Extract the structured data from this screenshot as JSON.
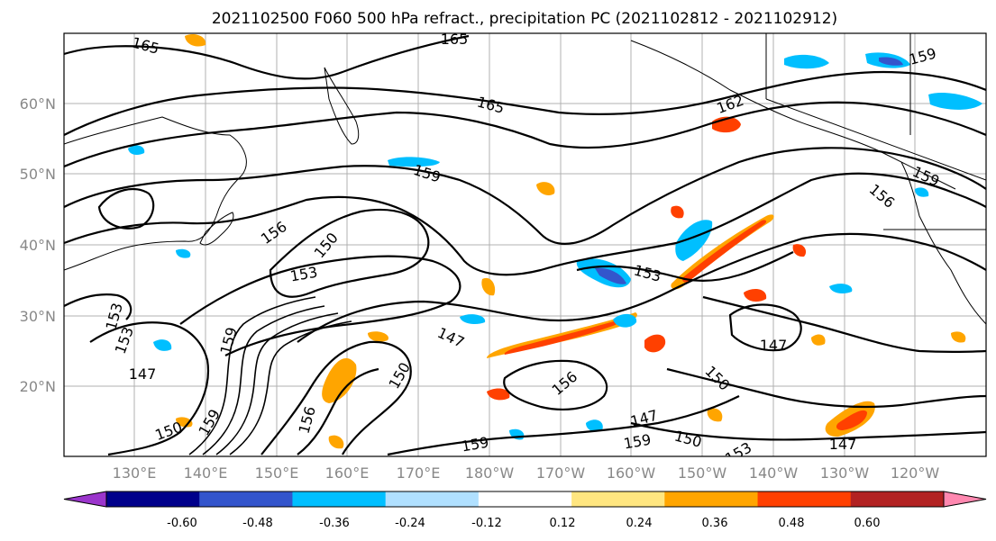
{
  "title": "2021102500 F060 500 hPa refract., precipitation PC (2021102812 - 2021102912)",
  "lat_labels": [
    "60°N",
    "50°N",
    "40°N",
    "30°N",
    "20°N"
  ],
  "lon_labels": [
    "130°E",
    "140°E",
    "150°E",
    "160°E",
    "170°E",
    "180°W",
    "170°W",
    "160°W",
    "150°W",
    "140°W",
    "130°W",
    "120°W"
  ],
  "colorbar": {
    "tick_labels": [
      "-0.60",
      "-0.48",
      "-0.36",
      "-0.24",
      "-0.12",
      "0.12",
      "0.24",
      "0.36",
      "0.48",
      "0.60"
    ],
    "colors": [
      "#9b35cc",
      "#00008b",
      "#3355cc",
      "#00bfff",
      "#b0e0ff",
      "#ffffff",
      "#ffe680",
      "#ffa500",
      "#ff4000",
      "#b22222",
      "#ff88b0"
    ]
  },
  "contour_labels": [
    "165",
    "165",
    "165",
    "162",
    "159",
    "156",
    "150",
    "153",
    "153",
    "153",
    "147",
    "159",
    "153",
    "150",
    "159",
    "156",
    "147",
    "150",
    "156",
    "159",
    "147",
    "150",
    "159",
    "150",
    "147",
    "159",
    "156",
    "159",
    "153",
    "147"
  ]
}
